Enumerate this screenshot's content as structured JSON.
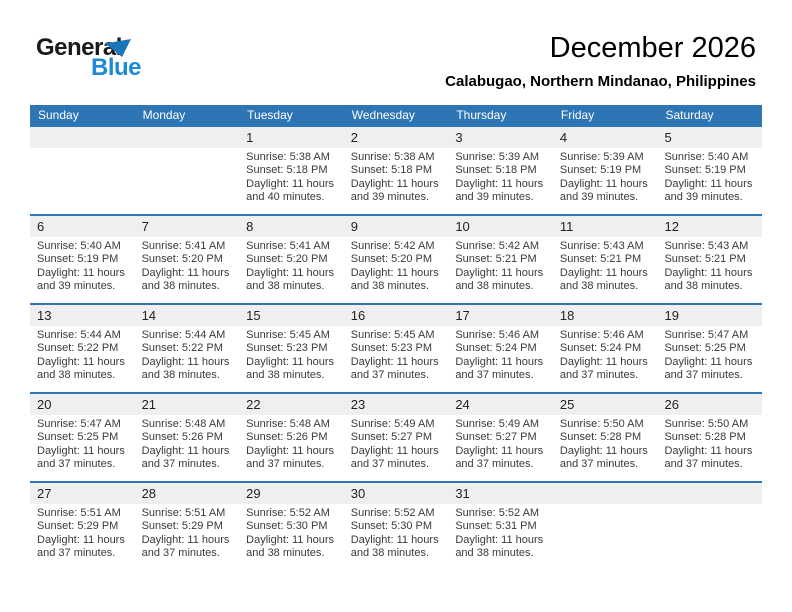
{
  "logo": {
    "general": "General",
    "blue": "Blue"
  },
  "title": "December 2026",
  "subtitle": "Calabugao, Northern Mindanao, Philippines",
  "colors": {
    "accent_blue": "#2E75B6",
    "strip_gray": "#EFEFEF",
    "logo_blue": "#1E8AD3",
    "triangle_blue": "#1B75BB",
    "header_text": "#FFFFFF"
  },
  "weekdays": [
    "Sunday",
    "Monday",
    "Tuesday",
    "Wednesday",
    "Thursday",
    "Friday",
    "Saturday"
  ],
  "weeks": [
    [
      {
        "day": "",
        "lines": []
      },
      {
        "day": "",
        "lines": []
      },
      {
        "day": "1",
        "lines": [
          "Sunrise: 5:38 AM",
          "Sunset: 5:18 PM",
          "Daylight: 11 hours",
          "and 40 minutes."
        ]
      },
      {
        "day": "2",
        "lines": [
          "Sunrise: 5:38 AM",
          "Sunset: 5:18 PM",
          "Daylight: 11 hours",
          "and 39 minutes."
        ]
      },
      {
        "day": "3",
        "lines": [
          "Sunrise: 5:39 AM",
          "Sunset: 5:18 PM",
          "Daylight: 11 hours",
          "and 39 minutes."
        ]
      },
      {
        "day": "4",
        "lines": [
          "Sunrise: 5:39 AM",
          "Sunset: 5:19 PM",
          "Daylight: 11 hours",
          "and 39 minutes."
        ]
      },
      {
        "day": "5",
        "lines": [
          "Sunrise: 5:40 AM",
          "Sunset: 5:19 PM",
          "Daylight: 11 hours",
          "and 39 minutes."
        ]
      }
    ],
    [
      {
        "day": "6",
        "lines": [
          "Sunrise: 5:40 AM",
          "Sunset: 5:19 PM",
          "Daylight: 11 hours",
          "and 39 minutes."
        ]
      },
      {
        "day": "7",
        "lines": [
          "Sunrise: 5:41 AM",
          "Sunset: 5:20 PM",
          "Daylight: 11 hours",
          "and 38 minutes."
        ]
      },
      {
        "day": "8",
        "lines": [
          "Sunrise: 5:41 AM",
          "Sunset: 5:20 PM",
          "Daylight: 11 hours",
          "and 38 minutes."
        ]
      },
      {
        "day": "9",
        "lines": [
          "Sunrise: 5:42 AM",
          "Sunset: 5:20 PM",
          "Daylight: 11 hours",
          "and 38 minutes."
        ]
      },
      {
        "day": "10",
        "lines": [
          "Sunrise: 5:42 AM",
          "Sunset: 5:21 PM",
          "Daylight: 11 hours",
          "and 38 minutes."
        ]
      },
      {
        "day": "11",
        "lines": [
          "Sunrise: 5:43 AM",
          "Sunset: 5:21 PM",
          "Daylight: 11 hours",
          "and 38 minutes."
        ]
      },
      {
        "day": "12",
        "lines": [
          "Sunrise: 5:43 AM",
          "Sunset: 5:21 PM",
          "Daylight: 11 hours",
          "and 38 minutes."
        ]
      }
    ],
    [
      {
        "day": "13",
        "lines": [
          "Sunrise: 5:44 AM",
          "Sunset: 5:22 PM",
          "Daylight: 11 hours",
          "and 38 minutes."
        ]
      },
      {
        "day": "14",
        "lines": [
          "Sunrise: 5:44 AM",
          "Sunset: 5:22 PM",
          "Daylight: 11 hours",
          "and 38 minutes."
        ]
      },
      {
        "day": "15",
        "lines": [
          "Sunrise: 5:45 AM",
          "Sunset: 5:23 PM",
          "Daylight: 11 hours",
          "and 38 minutes."
        ]
      },
      {
        "day": "16",
        "lines": [
          "Sunrise: 5:45 AM",
          "Sunset: 5:23 PM",
          "Daylight: 11 hours",
          "and 37 minutes."
        ]
      },
      {
        "day": "17",
        "lines": [
          "Sunrise: 5:46 AM",
          "Sunset: 5:24 PM",
          "Daylight: 11 hours",
          "and 37 minutes."
        ]
      },
      {
        "day": "18",
        "lines": [
          "Sunrise: 5:46 AM",
          "Sunset: 5:24 PM",
          "Daylight: 11 hours",
          "and 37 minutes."
        ]
      },
      {
        "day": "19",
        "lines": [
          "Sunrise: 5:47 AM",
          "Sunset: 5:25 PM",
          "Daylight: 11 hours",
          "and 37 minutes."
        ]
      }
    ],
    [
      {
        "day": "20",
        "lines": [
          "Sunrise: 5:47 AM",
          "Sunset: 5:25 PM",
          "Daylight: 11 hours",
          "and 37 minutes."
        ]
      },
      {
        "day": "21",
        "lines": [
          "Sunrise: 5:48 AM",
          "Sunset: 5:26 PM",
          "Daylight: 11 hours",
          "and 37 minutes."
        ]
      },
      {
        "day": "22",
        "lines": [
          "Sunrise: 5:48 AM",
          "Sunset: 5:26 PM",
          "Daylight: 11 hours",
          "and 37 minutes."
        ]
      },
      {
        "day": "23",
        "lines": [
          "Sunrise: 5:49 AM",
          "Sunset: 5:27 PM",
          "Daylight: 11 hours",
          "and 37 minutes."
        ]
      },
      {
        "day": "24",
        "lines": [
          "Sunrise: 5:49 AM",
          "Sunset: 5:27 PM",
          "Daylight: 11 hours",
          "and 37 minutes."
        ]
      },
      {
        "day": "25",
        "lines": [
          "Sunrise: 5:50 AM",
          "Sunset: 5:28 PM",
          "Daylight: 11 hours",
          "and 37 minutes."
        ]
      },
      {
        "day": "26",
        "lines": [
          "Sunrise: 5:50 AM",
          "Sunset: 5:28 PM",
          "Daylight: 11 hours",
          "and 37 minutes."
        ]
      }
    ],
    [
      {
        "day": "27",
        "lines": [
          "Sunrise: 5:51 AM",
          "Sunset: 5:29 PM",
          "Daylight: 11 hours",
          "and 37 minutes."
        ]
      },
      {
        "day": "28",
        "lines": [
          "Sunrise: 5:51 AM",
          "Sunset: 5:29 PM",
          "Daylight: 11 hours",
          "and 37 minutes."
        ]
      },
      {
        "day": "29",
        "lines": [
          "Sunrise: 5:52 AM",
          "Sunset: 5:30 PM",
          "Daylight: 11 hours",
          "and 38 minutes."
        ]
      },
      {
        "day": "30",
        "lines": [
          "Sunrise: 5:52 AM",
          "Sunset: 5:30 PM",
          "Daylight: 11 hours",
          "and 38 minutes."
        ]
      },
      {
        "day": "31",
        "lines": [
          "Sunrise: 5:52 AM",
          "Sunset: 5:31 PM",
          "Daylight: 11 hours",
          "and 38 minutes."
        ]
      },
      {
        "day": "",
        "lines": []
      },
      {
        "day": "",
        "lines": []
      }
    ]
  ]
}
